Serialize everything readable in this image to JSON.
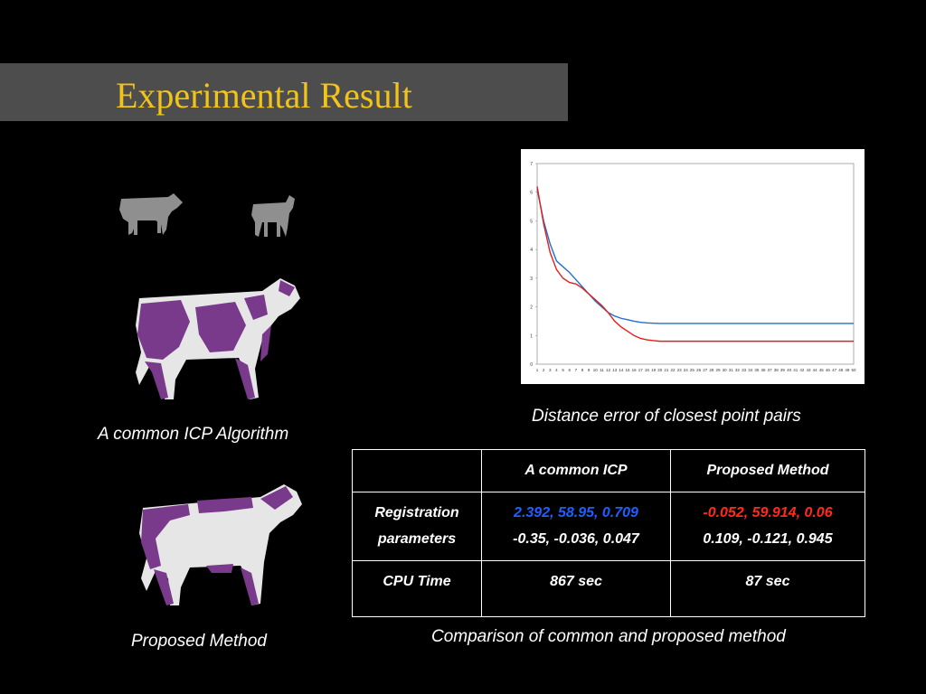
{
  "title": "Experimental Result",
  "captions": {
    "icp": "A common ICP Algorithm",
    "proposed": "Proposed Method",
    "chart": "Distance error of closest point pairs",
    "table": "Comparison of common and proposed method"
  },
  "table": {
    "headers": [
      "",
      "A common ICP",
      "Proposed Method"
    ],
    "rows": [
      {
        "label_line1": "Registration",
        "label_line2": "parameters",
        "icp_line1": "2.392, 58.95, 0.709",
        "icp_line2": "-0.35, -0.036, 0.047",
        "proposed_line1": "-0.052, 59.914, 0.06",
        "proposed_line2": "0.109, -0.121, 0.945"
      },
      {
        "label": "CPU Time",
        "icp": "867 sec",
        "proposed": "87 sec"
      }
    ]
  },
  "colors": {
    "title": "#f2c318",
    "icp_series": "#1f6fd6",
    "proposed_series": "#e0201a",
    "cow_purple": "#7a3a8c"
  },
  "chart_data": {
    "type": "line",
    "title": "",
    "xlabel": "",
    "ylabel": "",
    "xlim": [
      1,
      50
    ],
    "ylim": [
      0,
      7
    ],
    "y_ticks": [
      "0",
      "1",
      "2",
      "3",
      "4",
      "5",
      "6",
      "7"
    ],
    "x": [
      1,
      2,
      3,
      4,
      5,
      6,
      7,
      8,
      9,
      10,
      11,
      12,
      13,
      14,
      15,
      16,
      17,
      18,
      19,
      20,
      21,
      22,
      23,
      24,
      25,
      26,
      27,
      28,
      29,
      30,
      31,
      32,
      33,
      34,
      35,
      36,
      37,
      38,
      39,
      40,
      41,
      42,
      43,
      44,
      45,
      46,
      47,
      48,
      49,
      50
    ],
    "series": [
      {
        "color": "#1f6fd6",
        "values": [
          6.1,
          5.0,
          4.2,
          3.6,
          3.4,
          3.2,
          2.95,
          2.7,
          2.45,
          2.2,
          2.0,
          1.8,
          1.68,
          1.6,
          1.55,
          1.5,
          1.46,
          1.44,
          1.43,
          1.42,
          1.42,
          1.42,
          1.42,
          1.42,
          1.42,
          1.42,
          1.42,
          1.42,
          1.42,
          1.42,
          1.42,
          1.42,
          1.42,
          1.42,
          1.42,
          1.42,
          1.42,
          1.42,
          1.42,
          1.42,
          1.42,
          1.42,
          1.42,
          1.42,
          1.42,
          1.42,
          1.42,
          1.42,
          1.42,
          1.42
        ]
      },
      {
        "color": "#e0201a",
        "values": [
          6.2,
          4.9,
          3.9,
          3.3,
          3.0,
          2.85,
          2.8,
          2.65,
          2.45,
          2.25,
          2.05,
          1.8,
          1.5,
          1.3,
          1.15,
          1.0,
          0.9,
          0.85,
          0.82,
          0.8,
          0.8,
          0.8,
          0.8,
          0.8,
          0.8,
          0.8,
          0.8,
          0.8,
          0.8,
          0.8,
          0.8,
          0.8,
          0.8,
          0.8,
          0.8,
          0.8,
          0.8,
          0.8,
          0.8,
          0.8,
          0.8,
          0.8,
          0.8,
          0.8,
          0.8,
          0.8,
          0.8,
          0.8,
          0.8,
          0.8
        ]
      }
    ]
  }
}
